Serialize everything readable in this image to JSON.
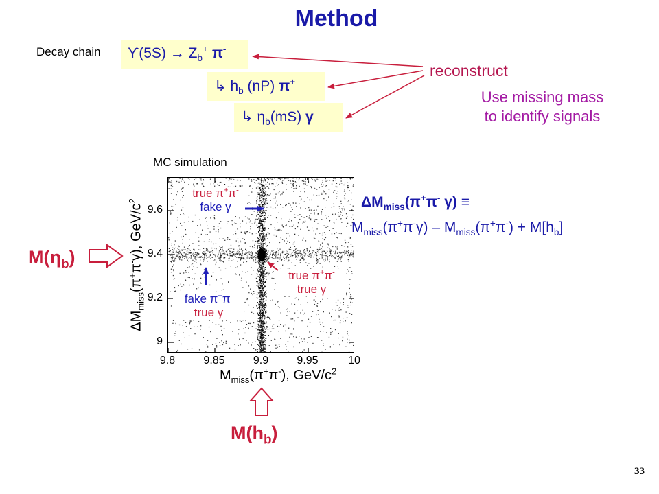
{
  "title": "Method",
  "decay_chain": {
    "label": "Decay chain",
    "line1": {
      "upsilon": "ϒ",
      "state": "(5S) ",
      "arrow": "→",
      "z": " Z",
      "z_sub": "b",
      "z_sup": "+",
      "pi": " π",
      "pi_sup": "-"
    },
    "line2": {
      "arrow": "↳",
      "h": " h",
      "h_sub": "b",
      "state": " (nP) ",
      "pi": "π",
      "pi_sup": "+"
    },
    "line3": {
      "arrow": "↳",
      "eta": " η",
      "eta_sub": "b",
      "state": "(mS) ",
      "gamma": "γ"
    }
  },
  "reconstruct_label": "reconstruct",
  "missing_mass_note": [
    "Use missing mass",
    "to identify signals"
  ],
  "mc_label": "MC simulation",
  "annotations": {
    "true_pipi_fake_gamma": {
      "line1": "true π",
      "sup1": "+",
      "pi2": "π",
      "sup2": "-",
      "line2": "fake γ"
    },
    "true_pipi_true_gamma": {
      "line1": "true π",
      "sup1": "+",
      "pi2": "π",
      "sup2": "-",
      "line2": "true γ"
    },
    "fake_pipi_true_gamma": {
      "line1": "fake π",
      "sup1": "+",
      "pi2": "π",
      "sup2": "-",
      "line2": "true γ"
    }
  },
  "arrow_labels": {
    "m_hb": {
      "text": "M(h",
      "sub": "b",
      "close": ")"
    },
    "m_etab": {
      "text": "M(η",
      "sub": "b",
      "close": ")"
    }
  },
  "formula": {
    "line1": {
      "delta": "ΔM",
      "sub": "miss",
      "open": "(π",
      "sup1": "+",
      "pi2": "π",
      "sup2": "-",
      "close": " γ) ",
      "equiv": "≡"
    },
    "line2": {
      "m1": "M",
      "sub1": "miss",
      "p1": "(π",
      "s1": "+",
      "p2": "π",
      "s2": "-",
      "p3": "γ) – M",
      "sub2": "miss",
      "p4": "(π",
      "s3": "+",
      "p5": "π",
      "s4": "-",
      "p6": ") + M[h",
      "sub3": "b",
      "p7": "]"
    }
  },
  "page_number": "33",
  "colors": {
    "title": "#1a1aa8",
    "chain_bg": "#ffffcc",
    "red": "#c81e3c",
    "magenta": "#a31aa3",
    "blue": "#2020b8"
  },
  "chart_data": {
    "type": "scatter",
    "title": "MC simulation",
    "xlabel": {
      "m": "M",
      "sub": "miss",
      "open": "(π",
      "sup1": "+",
      "pi2": "π",
      "sup2": "-",
      "close": "), GeV/c",
      "sup3": "2"
    },
    "ylabel": {
      "m": "ΔM",
      "sub": "miss",
      "open": "(π",
      "sup1": "+",
      "pi2": "π",
      "sup2": "-",
      "close": "γ), GeV/c",
      "sup3": "2"
    },
    "xlim": [
      9.8,
      10.0
    ],
    "ylim": [
      8.95,
      9.75
    ],
    "x_ticks": [
      "9.8",
      "9.85",
      "9.9",
      "9.95",
      "10"
    ],
    "x_tick_values": [
      9.8,
      9.85,
      9.9,
      9.95,
      10.0
    ],
    "y_ticks": [
      "9",
      "9.2",
      "9.4",
      "9.6"
    ],
    "y_tick_values": [
      9.0,
      9.2,
      9.4,
      9.6
    ],
    "grid": false,
    "features": [
      {
        "label": "true π+π- true γ",
        "x": 9.9,
        "y": 9.4
      },
      {
        "label": "true π+π- fake γ",
        "x": 9.9,
        "y_range": [
          8.95,
          9.75
        ]
      },
      {
        "label": "fake π+π- true γ",
        "y": 9.4,
        "x_range": [
          9.8,
          10.0
        ]
      }
    ]
  }
}
